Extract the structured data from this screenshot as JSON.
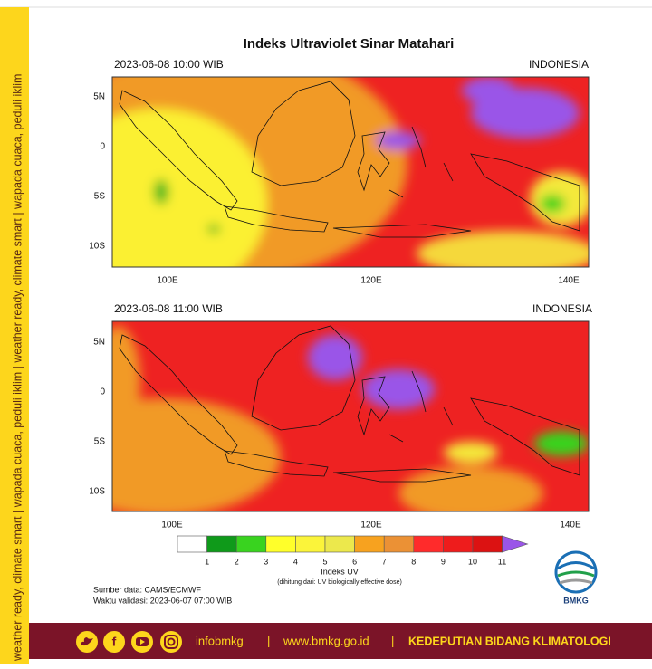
{
  "sidebar": "weather ready, climate smart | wapada cuaca, peduli iklim | weather ready, climate smart | wapada cuaca, peduli iklim",
  "title": "Indeks Ultraviolet Sinar Matahari",
  "panels": [
    {
      "time": "2023-06-08  10:00 WIB",
      "region": "INDONESIA",
      "lat_labels": [
        "5N",
        "0",
        "5S",
        "10S"
      ],
      "lon_labels": [
        "100E",
        "120E",
        "140E"
      ]
    },
    {
      "time": "2023-06-08  11:00 WIB",
      "region": "INDONESIA",
      "lat_labels": [
        "5N",
        "0",
        "5S",
        "10S"
      ],
      "lon_labels": [
        "100E",
        "120E",
        "140E"
      ]
    }
  ],
  "legend": {
    "labels": [
      "1",
      "2",
      "3",
      "4",
      "5",
      "6",
      "7",
      "8",
      "9",
      "10",
      "11"
    ],
    "colors": [
      "#ffffff",
      "#0f9a1a",
      "#39d31f",
      "#ffff2a",
      "#fbf43a",
      "#ece84c",
      "#f7a21f",
      "#eb9135",
      "#ff2b2b",
      "#ee1c1c",
      "#dc1212",
      "#9a55e8"
    ],
    "title": "Indeks UV",
    "note": "(dihitung dari: UV biologically effective dose)"
  },
  "source": "Sumber data: CAMS/ECMWF",
  "validity": "Waktu validasi: 2023-06-07 07:00 WIB",
  "logo": "BMKG",
  "footer": {
    "handle": "infobmkg",
    "separator": "|",
    "website": "www.bmkg.go.id",
    "unit": "KEDEPUTIAN BIDANG KLIMATOLOGI"
  }
}
